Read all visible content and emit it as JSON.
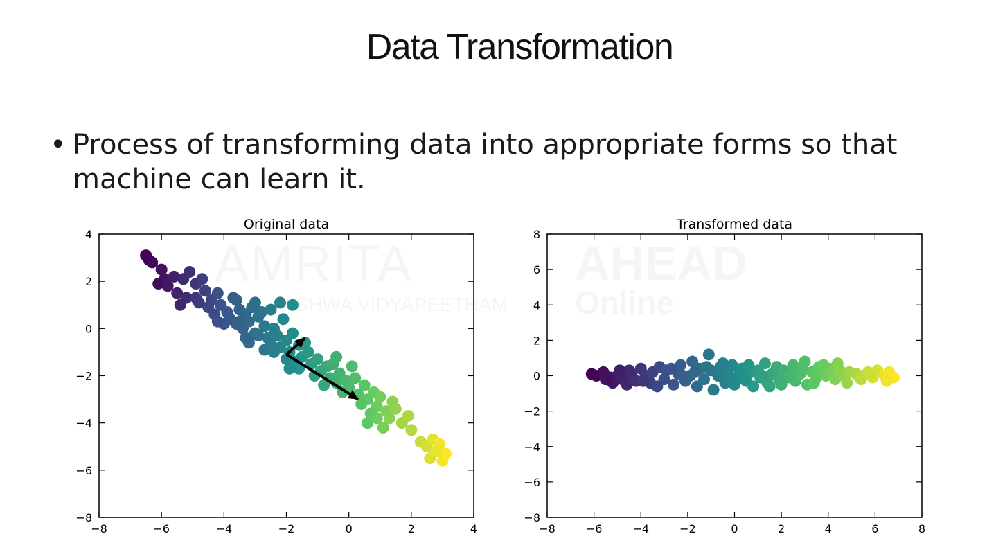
{
  "slide": {
    "title": "Data Transformation",
    "bullet": "Process of transforming data into appropriate forms so that machine can learn it.",
    "watermark": {
      "brand": "AMRITA",
      "subtitle": "VISHWA VIDYAPEETHAM",
      "partner": "AHEAD",
      "partner_sub": "Online"
    }
  },
  "chart_data": [
    {
      "type": "scatter",
      "title": "Original data",
      "xlabel": "",
      "ylabel": "",
      "xlim": [
        -8,
        4
      ],
      "ylim": [
        -8,
        4
      ],
      "xticks": [
        -8,
        -6,
        -4,
        -2,
        0,
        2,
        4
      ],
      "yticks": [
        -8,
        -6,
        -4,
        -2,
        0,
        2,
        4
      ],
      "grid": false,
      "colormap": "viridis",
      "marker_size": 6,
      "points": [
        [
          -6.5,
          3.1
        ],
        [
          -6.4,
          2.9
        ],
        [
          -6.3,
          2.8
        ],
        [
          -6.0,
          2.5
        ],
        [
          -5.9,
          2.1
        ],
        [
          -6.1,
          1.9
        ],
        [
          -5.8,
          1.8
        ],
        [
          -5.6,
          2.2
        ],
        [
          -5.3,
          2.1
        ],
        [
          -5.1,
          2.4
        ],
        [
          -4.9,
          1.9
        ],
        [
          -4.7,
          2.1
        ],
        [
          -5.5,
          1.5
        ],
        [
          -5.2,
          1.3
        ],
        [
          -4.6,
          1.6
        ],
        [
          -4.4,
          1.2
        ],
        [
          -4.9,
          1.3
        ],
        [
          -4.2,
          1.5
        ],
        [
          -4.5,
          0.9
        ],
        [
          -4.1,
          1.0
        ],
        [
          -3.9,
          0.7
        ],
        [
          -4.3,
          0.6
        ],
        [
          -3.7,
          1.3
        ],
        [
          -3.5,
          0.8
        ],
        [
          -3.8,
          0.4
        ],
        [
          -3.6,
          0.2
        ],
        [
          -3.3,
          0.6
        ],
        [
          -3.1,
          0.9
        ],
        [
          -3.4,
          0.0
        ],
        [
          -3.2,
          0.3
        ],
        [
          -2.9,
          0.5
        ],
        [
          -2.7,
          0.1
        ],
        [
          -3.0,
          -0.2
        ],
        [
          -2.6,
          -0.4
        ],
        [
          -2.8,
          0.7
        ],
        [
          -2.4,
          0.0
        ],
        [
          -2.5,
          -0.6
        ],
        [
          -2.3,
          -0.3
        ],
        [
          -2.2,
          -0.8
        ],
        [
          -2.0,
          -0.5
        ],
        [
          -1.9,
          -1.0
        ],
        [
          -1.8,
          -0.2
        ],
        [
          -2.7,
          -0.9
        ],
        [
          -3.2,
          -0.6
        ],
        [
          -1.6,
          -0.7
        ],
        [
          -1.5,
          -1.2
        ],
        [
          -1.7,
          -1.4
        ],
        [
          -1.3,
          -1.0
        ],
        [
          -1.2,
          -1.5
        ],
        [
          -1.0,
          -1.3
        ],
        [
          -0.9,
          -1.8
        ],
        [
          -1.1,
          -2.0
        ],
        [
          -0.7,
          -1.6
        ],
        [
          -0.6,
          -2.1
        ],
        [
          -0.5,
          -1.5
        ],
        [
          -0.4,
          -2.3
        ],
        [
          -0.3,
          -1.9
        ],
        [
          -0.1,
          -2.2
        ],
        [
          0.0,
          -2.5
        ],
        [
          0.2,
          -2.1
        ],
        [
          -0.2,
          -2.7
        ],
        [
          0.3,
          -2.8
        ],
        [
          0.5,
          -2.4
        ],
        [
          0.6,
          -3.0
        ],
        [
          0.4,
          -3.2
        ],
        [
          0.8,
          -2.7
        ],
        [
          0.9,
          -3.3
        ],
        [
          1.0,
          -2.9
        ],
        [
          1.2,
          -3.5
        ],
        [
          1.4,
          -3.1
        ],
        [
          -2.1,
          0.4
        ],
        [
          -2.9,
          -0.3
        ],
        [
          -3.5,
          0.3
        ],
        [
          -4.0,
          0.2
        ],
        [
          -2.0,
          -1.3
        ],
        [
          -1.4,
          -0.6
        ],
        [
          -0.8,
          -2.4
        ],
        [
          0.7,
          -3.6
        ],
        [
          0.6,
          -4.0
        ],
        [
          0.9,
          -3.8
        ],
        [
          1.1,
          -4.2
        ],
        [
          1.3,
          -3.8
        ],
        [
          1.5,
          -3.4
        ],
        [
          1.7,
          -4.0
        ],
        [
          1.9,
          -3.7
        ],
        [
          2.0,
          -4.3
        ],
        [
          2.3,
          -4.8
        ],
        [
          2.5,
          -5.0
        ],
        [
          2.7,
          -4.7
        ],
        [
          2.9,
          -4.9
        ],
        [
          2.6,
          -5.5
        ],
        [
          3.0,
          -5.6
        ],
        [
          3.1,
          -5.3
        ],
        [
          2.8,
          -5.2
        ],
        [
          -1.8,
          1.0
        ],
        [
          -2.2,
          1.1
        ],
        [
          -3.6,
          1.2
        ],
        [
          -5.4,
          1.0
        ],
        [
          -4.8,
          1.1
        ],
        [
          -3.0,
          1.1
        ],
        [
          -2.5,
          0.8
        ],
        [
          -1.6,
          -1.7
        ],
        [
          -0.4,
          -1.2
        ],
        [
          0.1,
          -1.6
        ],
        [
          -1.9,
          -1.7
        ],
        [
          -2.4,
          -1.0
        ],
        [
          -3.3,
          -0.4
        ],
        [
          -4.2,
          0.3
        ]
      ],
      "annotation": {
        "type": "arrows",
        "origin": [
          -2.0,
          -1.1
        ],
        "vectors": [
          {
            "to": [
              0.3,
              -3.0
            ]
          },
          {
            "to": [
              -1.4,
              -0.4
            ]
          }
        ]
      }
    },
    {
      "type": "scatter",
      "title": "Transformed data",
      "xlabel": "",
      "ylabel": "",
      "xlim": [
        -8,
        8
      ],
      "ylim": [
        -8,
        8
      ],
      "xticks": [
        -8,
        -6,
        -4,
        -2,
        0,
        2,
        4,
        6,
        8
      ],
      "yticks": [
        -8,
        -6,
        -4,
        -2,
        0,
        2,
        4,
        6,
        8
      ],
      "grid": false,
      "colormap": "viridis",
      "marker_size": 6,
      "points": [
        [
          -6.1,
          0.1
        ],
        [
          -5.9,
          0.0
        ],
        [
          -5.6,
          0.2
        ],
        [
          -5.3,
          -0.1
        ],
        [
          -5.2,
          -0.4
        ],
        [
          -5.0,
          0.0
        ],
        [
          -4.8,
          -0.2
        ],
        [
          -4.5,
          0.3
        ],
        [
          -4.6,
          -0.5
        ],
        [
          -4.4,
          0.1
        ],
        [
          -4.2,
          -0.3
        ],
        [
          -4.0,
          0.4
        ],
        [
          -3.8,
          0.0
        ],
        [
          -3.6,
          -0.4
        ],
        [
          -3.5,
          0.2
        ],
        [
          -3.2,
          0.5
        ],
        [
          -3.0,
          -0.2
        ],
        [
          -2.9,
          0.3
        ],
        [
          -2.6,
          -0.5
        ],
        [
          -2.4,
          0.1
        ],
        [
          -2.3,
          0.6
        ],
        [
          -2.1,
          -0.3
        ],
        [
          -1.9,
          0.0
        ],
        [
          -1.8,
          0.8
        ],
        [
          -1.6,
          -0.6
        ],
        [
          -1.5,
          0.4
        ],
        [
          -1.3,
          -0.2
        ],
        [
          -1.1,
          1.2
        ],
        [
          -1.0,
          0.3
        ],
        [
          -0.9,
          -0.8
        ],
        [
          -0.7,
          0.0
        ],
        [
          -0.6,
          0.5
        ],
        [
          -0.4,
          -0.4
        ],
        [
          -0.3,
          0.2
        ],
        [
          -0.1,
          0.6
        ],
        [
          0.0,
          -0.5
        ],
        [
          0.2,
          0.1
        ],
        [
          0.3,
          0.4
        ],
        [
          0.5,
          -0.3
        ],
        [
          0.7,
          0.2
        ],
        [
          0.8,
          -0.6
        ],
        [
          1.0,
          0.3
        ],
        [
          1.1,
          -0.1
        ],
        [
          1.3,
          0.7
        ],
        [
          1.4,
          -0.4
        ],
        [
          1.6,
          0.1
        ],
        [
          1.8,
          0.5
        ],
        [
          1.9,
          -0.2
        ],
        [
          2.1,
          0.3
        ],
        [
          2.3,
          -0.1
        ],
        [
          2.5,
          0.6
        ],
        [
          2.6,
          -0.3
        ],
        [
          2.8,
          0.1
        ],
        [
          3.0,
          0.8
        ],
        [
          3.1,
          -0.5
        ],
        [
          3.3,
          0.2
        ],
        [
          3.5,
          -0.1
        ],
        [
          3.6,
          0.5
        ],
        [
          3.9,
          0.0
        ],
        [
          4.1,
          0.4
        ],
        [
          4.3,
          -0.2
        ],
        [
          4.5,
          0.3
        ],
        [
          4.7,
          0.0
        ],
        [
          4.9,
          0.2
        ],
        [
          5.2,
          0.1
        ],
        [
          5.4,
          -0.2
        ],
        [
          5.5,
          0.0
        ],
        [
          5.7,
          0.2
        ],
        [
          5.9,
          -0.1
        ],
        [
          6.1,
          0.3
        ],
        [
          6.4,
          0.0
        ],
        [
          6.6,
          0.2
        ],
        [
          6.8,
          -0.1
        ],
        [
          6.5,
          -0.3
        ],
        [
          -3.9,
          -0.3
        ],
        [
          -2.7,
          0.4
        ],
        [
          -1.7,
          0.2
        ],
        [
          -0.5,
          0.7
        ],
        [
          0.4,
          -0.2
        ],
        [
          1.2,
          0.0
        ],
        [
          2.0,
          -0.5
        ],
        [
          2.9,
          0.5
        ],
        [
          3.8,
          0.6
        ],
        [
          4.4,
          0.7
        ],
        [
          -5.5,
          -0.2
        ],
        [
          -4.9,
          0.3
        ],
        [
          -3.3,
          -0.6
        ],
        [
          -2.2,
          0.0
        ],
        [
          -1.2,
          0.5
        ],
        [
          -0.2,
          -0.1
        ],
        [
          0.6,
          0.6
        ],
        [
          1.5,
          -0.6
        ],
        [
          2.4,
          0.0
        ],
        [
          3.4,
          -0.4
        ],
        [
          4.8,
          -0.4
        ],
        [
          5.8,
          0.1
        ]
      ]
    }
  ]
}
